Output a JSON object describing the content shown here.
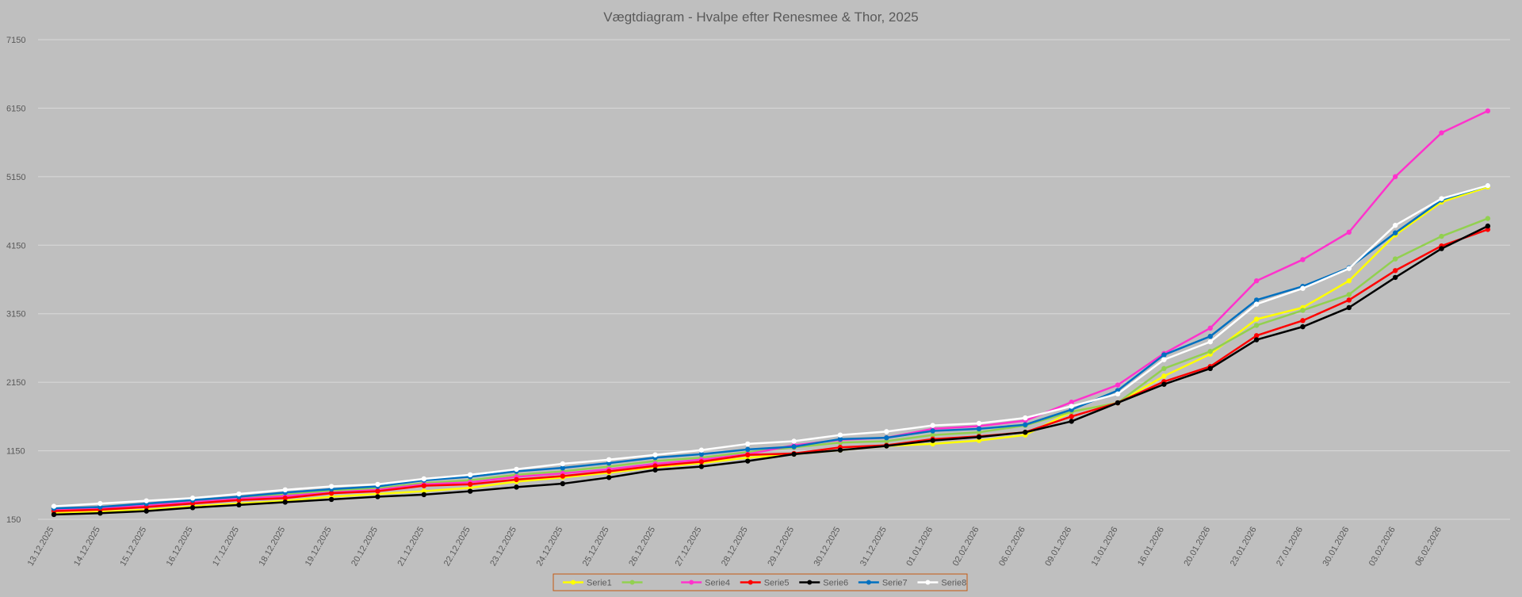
{
  "chart_data": {
    "type": "line",
    "title": "Vægtdiagram - Hvalpe efter Renesmee & Thor, 2025",
    "xlabel": "",
    "ylabel": "",
    "ylim": [
      150,
      7150
    ],
    "yticks": [
      150,
      1150,
      2150,
      3150,
      4150,
      5150,
      6150,
      7150
    ],
    "grid": true,
    "legend_position": "bottom",
    "x": [
      "13.12.2025",
      "14.12.2025",
      "15.12.2025",
      "16.12.2025",
      "17.12.2025",
      "18.12.2025",
      "19.12.2025",
      "20.12.2025",
      "21.12.2025",
      "22.12.2025",
      "23.12.2025",
      "24.12.2025",
      "25.12.2025",
      "26.12.2025",
      "27.12.2025",
      "28.12.2025",
      "29.12.2025",
      "30.12.2025",
      "31.12.2025",
      "01.01.2026",
      "02.02.2026",
      "06.02.2026",
      "09.01.2026",
      "13.01.2026",
      "16.01.2026",
      "20.01.2026",
      "23.01.2026",
      "27.01.2026",
      "30.01.2026",
      "03.02.2026",
      "06.02.2026",
      ""
    ],
    "series": [
      {
        "name": "Serie1",
        "color": "#ffff00",
        "values": [
          240,
          260,
          290,
          340,
          380,
          420,
          480,
          520,
          560,
          610,
          700,
          760,
          830,
          910,
          970,
          1050,
          1100,
          1160,
          1220,
          1250,
          1300,
          1380,
          1720,
          1850,
          2240,
          2560,
          3070,
          3240,
          3630,
          4300,
          4780,
          5000
        ]
      },
      {
        "name": "",
        "color": "#92d050",
        "values": [
          300,
          320,
          370,
          420,
          470,
          510,
          570,
          600,
          680,
          720,
          800,
          850,
          920,
          1000,
          1050,
          1130,
          1200,
          1270,
          1290,
          1380,
          1420,
          1520,
          1720,
          1850,
          2350,
          2600,
          2980,
          3200,
          3430,
          3950,
          4280,
          4540
        ]
      },
      {
        "name": "Serie4",
        "color": "#ff33cc",
        "values": [
          290,
          310,
          350,
          400,
          450,
          490,
          540,
          580,
          660,
          690,
          770,
          820,
          880,
          960,
          1020,
          1100,
          1230,
          1310,
          1340,
          1470,
          1510,
          1590,
          1860,
          2110,
          2570,
          2940,
          3630,
          3940,
          4340,
          5150,
          5790,
          6110
        ]
      },
      {
        "name": "Serie5",
        "color": "#ff0000",
        "values": [
          270,
          290,
          330,
          380,
          430,
          460,
          530,
          560,
          640,
          660,
          730,
          780,
          850,
          930,
          990,
          1090,
          1110,
          1200,
          1230,
          1320,
          1360,
          1420,
          1650,
          1850,
          2160,
          2380,
          2830,
          3050,
          3350,
          3780,
          4140,
          4380
        ]
      },
      {
        "name": "Serie6",
        "color": "#000000",
        "values": [
          220,
          240,
          270,
          320,
          360,
          400,
          440,
          480,
          510,
          560,
          620,
          670,
          760,
          870,
          920,
          1000,
          1100,
          1160,
          1220,
          1300,
          1350,
          1420,
          1580,
          1850,
          2120,
          2350,
          2770,
          2960,
          3240,
          3680,
          4100,
          4430
        ]
      },
      {
        "name": "Serie7",
        "color": "#0070c0",
        "values": [
          310,
          330,
          380,
          430,
          480,
          540,
          590,
          630,
          720,
          770,
          850,
          900,
          970,
          1050,
          1100,
          1170,
          1210,
          1320,
          1340,
          1440,
          1470,
          1530,
          1750,
          2030,
          2550,
          2820,
          3350,
          3550,
          3820,
          4330,
          4810,
          5020
        ]
      },
      {
        "name": "Serie8",
        "color": "#ffffff",
        "values": [
          340,
          380,
          420,
          460,
          520,
          580,
          630,
          660,
          740,
          800,
          880,
          960,
          1020,
          1090,
          1160,
          1250,
          1290,
          1380,
          1430,
          1520,
          1550,
          1630,
          1800,
          1980,
          2480,
          2740,
          3290,
          3520,
          3810,
          4440,
          4830,
          5020
        ]
      }
    ]
  }
}
